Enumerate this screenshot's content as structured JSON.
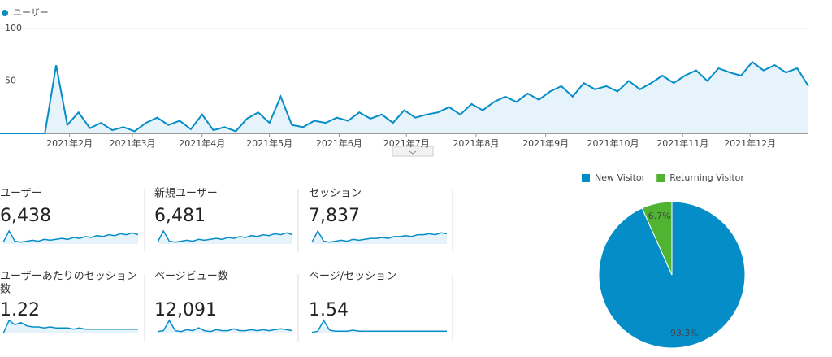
{
  "chart_data": [
    {
      "type": "line",
      "series": [
        {
          "name": "ユーザー",
          "color": "#058dc7",
          "values": [
            0,
            0,
            0,
            0,
            0,
            65,
            8,
            20,
            5,
            10,
            3,
            6,
            2,
            10,
            15,
            8,
            12,
            4,
            18,
            3,
            6,
            2,
            14,
            20,
            10,
            35,
            8,
            6,
            12,
            10,
            15,
            12,
            20,
            14,
            18,
            10,
            22,
            15,
            18,
            20,
            25,
            18,
            28,
            22,
            30,
            35,
            30,
            38,
            32,
            40,
            45,
            35,
            48,
            42,
            45,
            40,
            50,
            42,
            48,
            55,
            48,
            55,
            60,
            50,
            62,
            58,
            55,
            68,
            60,
            65,
            58,
            62,
            45
          ]
        }
      ],
      "xlim": [
        0,
        72
      ],
      "xticks": [
        {
          "value": 6.2,
          "label": "2021年2月"
        },
        {
          "value": 11.8,
          "label": "2021年3月"
        },
        {
          "value": 18,
          "label": "2021年4月"
        },
        {
          "value": 24,
          "label": "2021年5月"
        },
        {
          "value": 30.2,
          "label": "2021年6月"
        },
        {
          "value": 36.2,
          "label": "2021年7月"
        },
        {
          "value": 42.4,
          "label": "2021年8月"
        },
        {
          "value": 48.6,
          "label": "2021年9月"
        },
        {
          "value": 54.6,
          "label": "2021年10月"
        },
        {
          "value": 60.8,
          "label": "2021年11月"
        },
        {
          "value": 66.8,
          "label": "2021年12月"
        }
      ],
      "ylim": [
        0,
        100
      ],
      "yticks": [
        50,
        100
      ],
      "grid": true
    },
    {
      "type": "pie",
      "categories": [
        "New Visitor",
        "Returning Visitor"
      ],
      "values": [
        93.3,
        6.7
      ],
      "value_labels": [
        "93.3%",
        "6.7%"
      ],
      "colors": [
        "#058dc7",
        "#50b432"
      ],
      "legend": "top"
    }
  ],
  "metrics": [
    {
      "label": "ユーザー",
      "value": "6,438",
      "trend": [
        2,
        14,
        3,
        2,
        3,
        4,
        3,
        5,
        4,
        5,
        6,
        5,
        7,
        6,
        8,
        7,
        9,
        8,
        10,
        9,
        11,
        10,
        12,
        10
      ]
    },
    {
      "label": "新規ユーザー",
      "value": "6,481",
      "trend": [
        2,
        14,
        3,
        2,
        3,
        4,
        3,
        5,
        4,
        5,
        6,
        5,
        7,
        6,
        8,
        7,
        9,
        8,
        10,
        9,
        11,
        10,
        12,
        10
      ]
    },
    {
      "label": "セッション",
      "value": "7,837",
      "trend": [
        2,
        14,
        3,
        2,
        3,
        4,
        3,
        5,
        4,
        5,
        6,
        6,
        7,
        6,
        8,
        8,
        9,
        8,
        10,
        10,
        11,
        10,
        12,
        11
      ]
    },
    {
      "label": "ユーザーあたりのセッション数",
      "value": "1.22",
      "trend": [
        0,
        12,
        8,
        10,
        7,
        6,
        6,
        5,
        6,
        5,
        5,
        5,
        4,
        5,
        4,
        4,
        4,
        4,
        4,
        4,
        4,
        4,
        4,
        4
      ]
    },
    {
      "label": "ページビュー数",
      "value": "12,091",
      "trend": [
        2,
        3,
        14,
        3,
        2,
        4,
        3,
        6,
        3,
        2,
        4,
        3,
        3,
        5,
        3,
        3,
        4,
        3,
        4,
        3,
        4,
        5,
        4,
        3
      ]
    },
    {
      "label": "ページ/セッション",
      "value": "1.54",
      "trend": [
        1,
        2,
        12,
        3,
        2,
        2,
        2,
        3,
        2,
        2,
        2,
        2,
        2,
        2,
        2,
        2,
        2,
        2,
        2,
        2,
        2,
        2,
        2,
        2
      ]
    }
  ]
}
